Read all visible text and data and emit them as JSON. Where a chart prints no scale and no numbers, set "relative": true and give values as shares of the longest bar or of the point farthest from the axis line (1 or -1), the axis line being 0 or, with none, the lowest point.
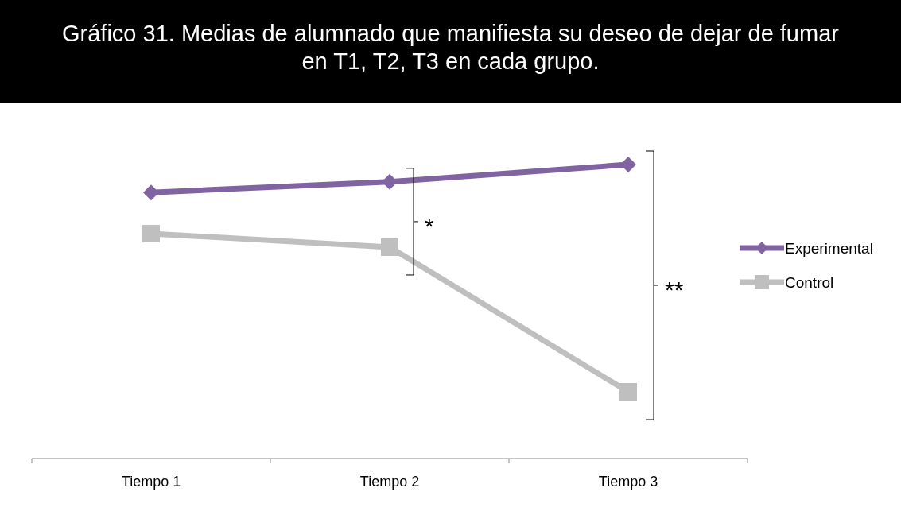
{
  "chart_data": {
    "type": "line",
    "title": "Gráfico 31. Medias de alumnado que manifiesta su deseo de dejar de fumar en T1, T2, T3 en cada grupo.",
    "categories": [
      "Tiempo 1",
      "Tiempo 2",
      "Tiempo 3"
    ],
    "relative": true,
    "legend": "right",
    "series": [
      {
        "name": "Experimental",
        "color": "#8064a2",
        "marker": "diamond",
        "values": [
          0.905,
          0.941,
          1.0
        ]
      },
      {
        "name": "Control",
        "color": "#bfbfbf",
        "marker": "square",
        "values": [
          0.765,
          0.719,
          0.227
        ]
      }
    ],
    "annotations": [
      "*",
      "**"
    ]
  }
}
